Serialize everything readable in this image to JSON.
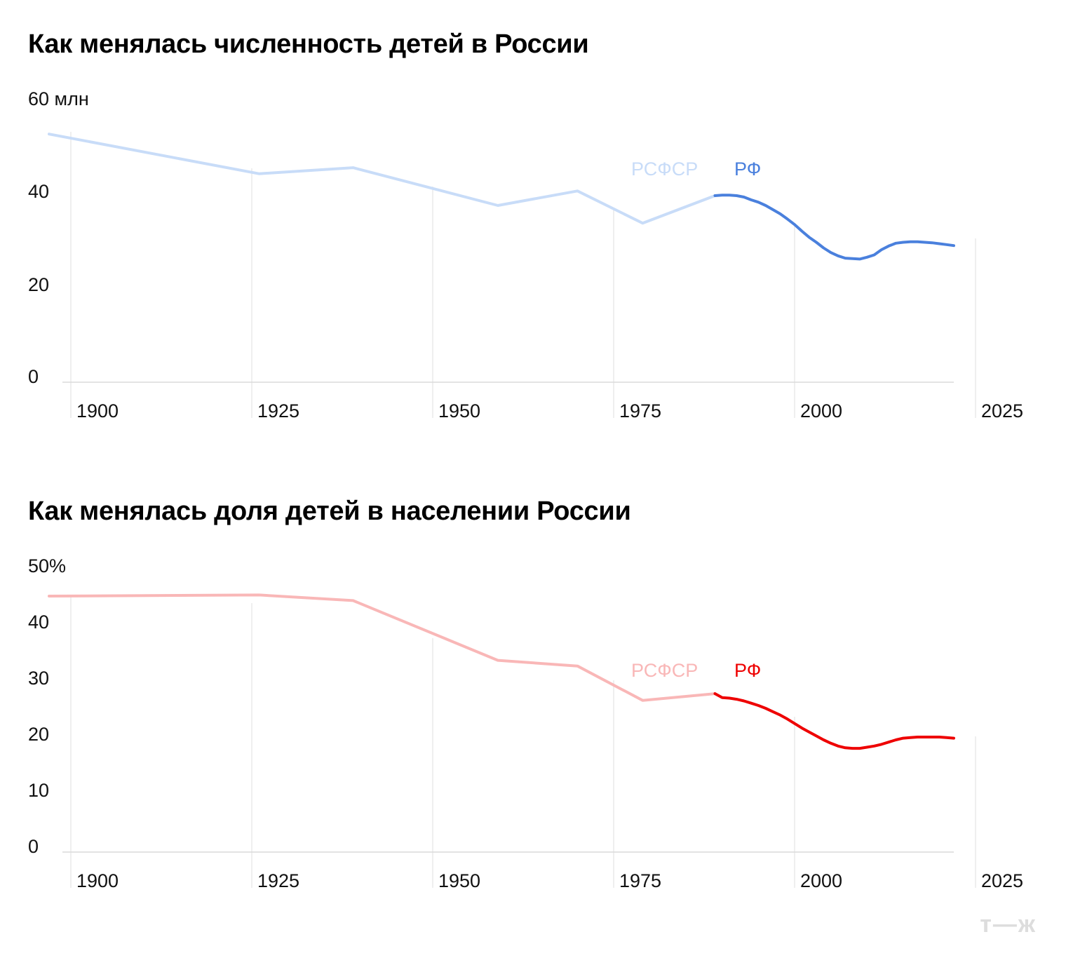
{
  "chart_data": [
    {
      "type": "line",
      "title": "Как менялась численность детей в России",
      "xlim": [
        1897,
        2022
      ],
      "ylim": [
        0,
        60
      ],
      "x_ticks": [
        "1900",
        "1925",
        "1950",
        "1975",
        "2000",
        "2025"
      ],
      "y_ticks": [
        "60 млн",
        "40",
        "20",
        "0"
      ],
      "grid": "vertical",
      "series": [
        {
          "name": "РСФСР",
          "color": "#c8dcf8",
          "x": [
            1897,
            1926,
            1939,
            1959,
            1970,
            1979,
            1989
          ],
          "y": [
            53.2,
            44.7,
            46.0,
            37.9,
            41.0,
            34.1,
            40.0
          ]
        },
        {
          "name": "РФ",
          "color": "#4a80dd",
          "x": [
            1989,
            1990,
            1991,
            1992,
            1993,
            1994,
            1995,
            1996,
            1997,
            1998,
            1999,
            2000,
            2001,
            2002,
            2003,
            2004,
            2005,
            2006,
            2007,
            2008,
            2009,
            2010,
            2011,
            2012,
            2013,
            2014,
            2015,
            2016,
            2017,
            2018,
            2019,
            2020,
            2021,
            2022
          ],
          "y": [
            40.0,
            40.1,
            40.1,
            40.0,
            39.7,
            39.1,
            38.6,
            37.9,
            37.0,
            36.1,
            35.0,
            33.8,
            32.4,
            31.1,
            30.0,
            28.8,
            27.8,
            27.1,
            26.6,
            26.5,
            26.4,
            26.8,
            27.3,
            28.4,
            29.2,
            29.8,
            30.0,
            30.1,
            30.1,
            30.0,
            29.9,
            29.7,
            29.5,
            29.3
          ]
        }
      ]
    },
    {
      "type": "line",
      "title": "Как менялась доля детей в населении России",
      "xlim": [
        1897,
        2022
      ],
      "ylim": [
        0,
        50
      ],
      "x_ticks": [
        "1900",
        "1925",
        "1950",
        "1975",
        "2000",
        "2025"
      ],
      "y_ticks": [
        "50%",
        "40",
        "30",
        "20",
        "10",
        "0"
      ],
      "grid": "vertical",
      "series": [
        {
          "name": "РСФСР",
          "color": "#f9b7b7",
          "x": [
            1897,
            1926,
            1939,
            1959,
            1970,
            1979,
            1989
          ],
          "y": [
            45.4,
            45.6,
            44.6,
            34.0,
            33.0,
            26.9,
            28.1
          ]
        },
        {
          "name": "РФ",
          "color": "#ee0000",
          "x": [
            1989,
            1990,
            1991,
            1992,
            1993,
            1994,
            1995,
            1996,
            1997,
            1998,
            1999,
            2000,
            2001,
            2002,
            2003,
            2004,
            2005,
            2006,
            2007,
            2008,
            2009,
            2010,
            2011,
            2012,
            2013,
            2014,
            2015,
            2016,
            2017,
            2018,
            2019,
            2020,
            2021,
            2022
          ],
          "y": [
            28.1,
            27.4,
            27.3,
            27.1,
            26.8,
            26.4,
            26.0,
            25.5,
            24.9,
            24.3,
            23.6,
            22.8,
            22.0,
            21.3,
            20.6,
            19.9,
            19.3,
            18.8,
            18.5,
            18.4,
            18.4,
            18.6,
            18.8,
            19.1,
            19.5,
            19.9,
            20.2,
            20.3,
            20.4,
            20.4,
            20.4,
            20.4,
            20.3,
            20.2
          ]
        }
      ]
    }
  ],
  "watermark": "т—ж"
}
